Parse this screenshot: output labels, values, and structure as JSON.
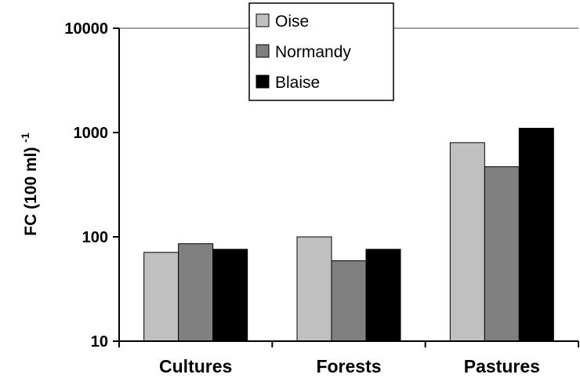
{
  "chart_data": {
    "type": "bar",
    "title": "",
    "xlabel": "",
    "ylabel": "FC (100 ml)",
    "ylabel_superscript": "-1",
    "yscale": "log",
    "ylim": [
      10,
      10000
    ],
    "yticks": [
      "10",
      "100",
      "1000",
      "10000"
    ],
    "grid": "major y at 10000 only",
    "legend_position": "top-center",
    "categories": [
      "Cultures",
      "Forests",
      "Pastures"
    ],
    "series": [
      {
        "name": "Oise",
        "color": "#c0c0c0",
        "values": [
          71,
          100,
          800
        ]
      },
      {
        "name": "Normandy",
        "color": "#808080",
        "values": [
          86,
          59,
          470
        ]
      },
      {
        "name": "Blaise",
        "color": "#000000",
        "values": [
          76,
          76,
          1100
        ]
      }
    ]
  }
}
